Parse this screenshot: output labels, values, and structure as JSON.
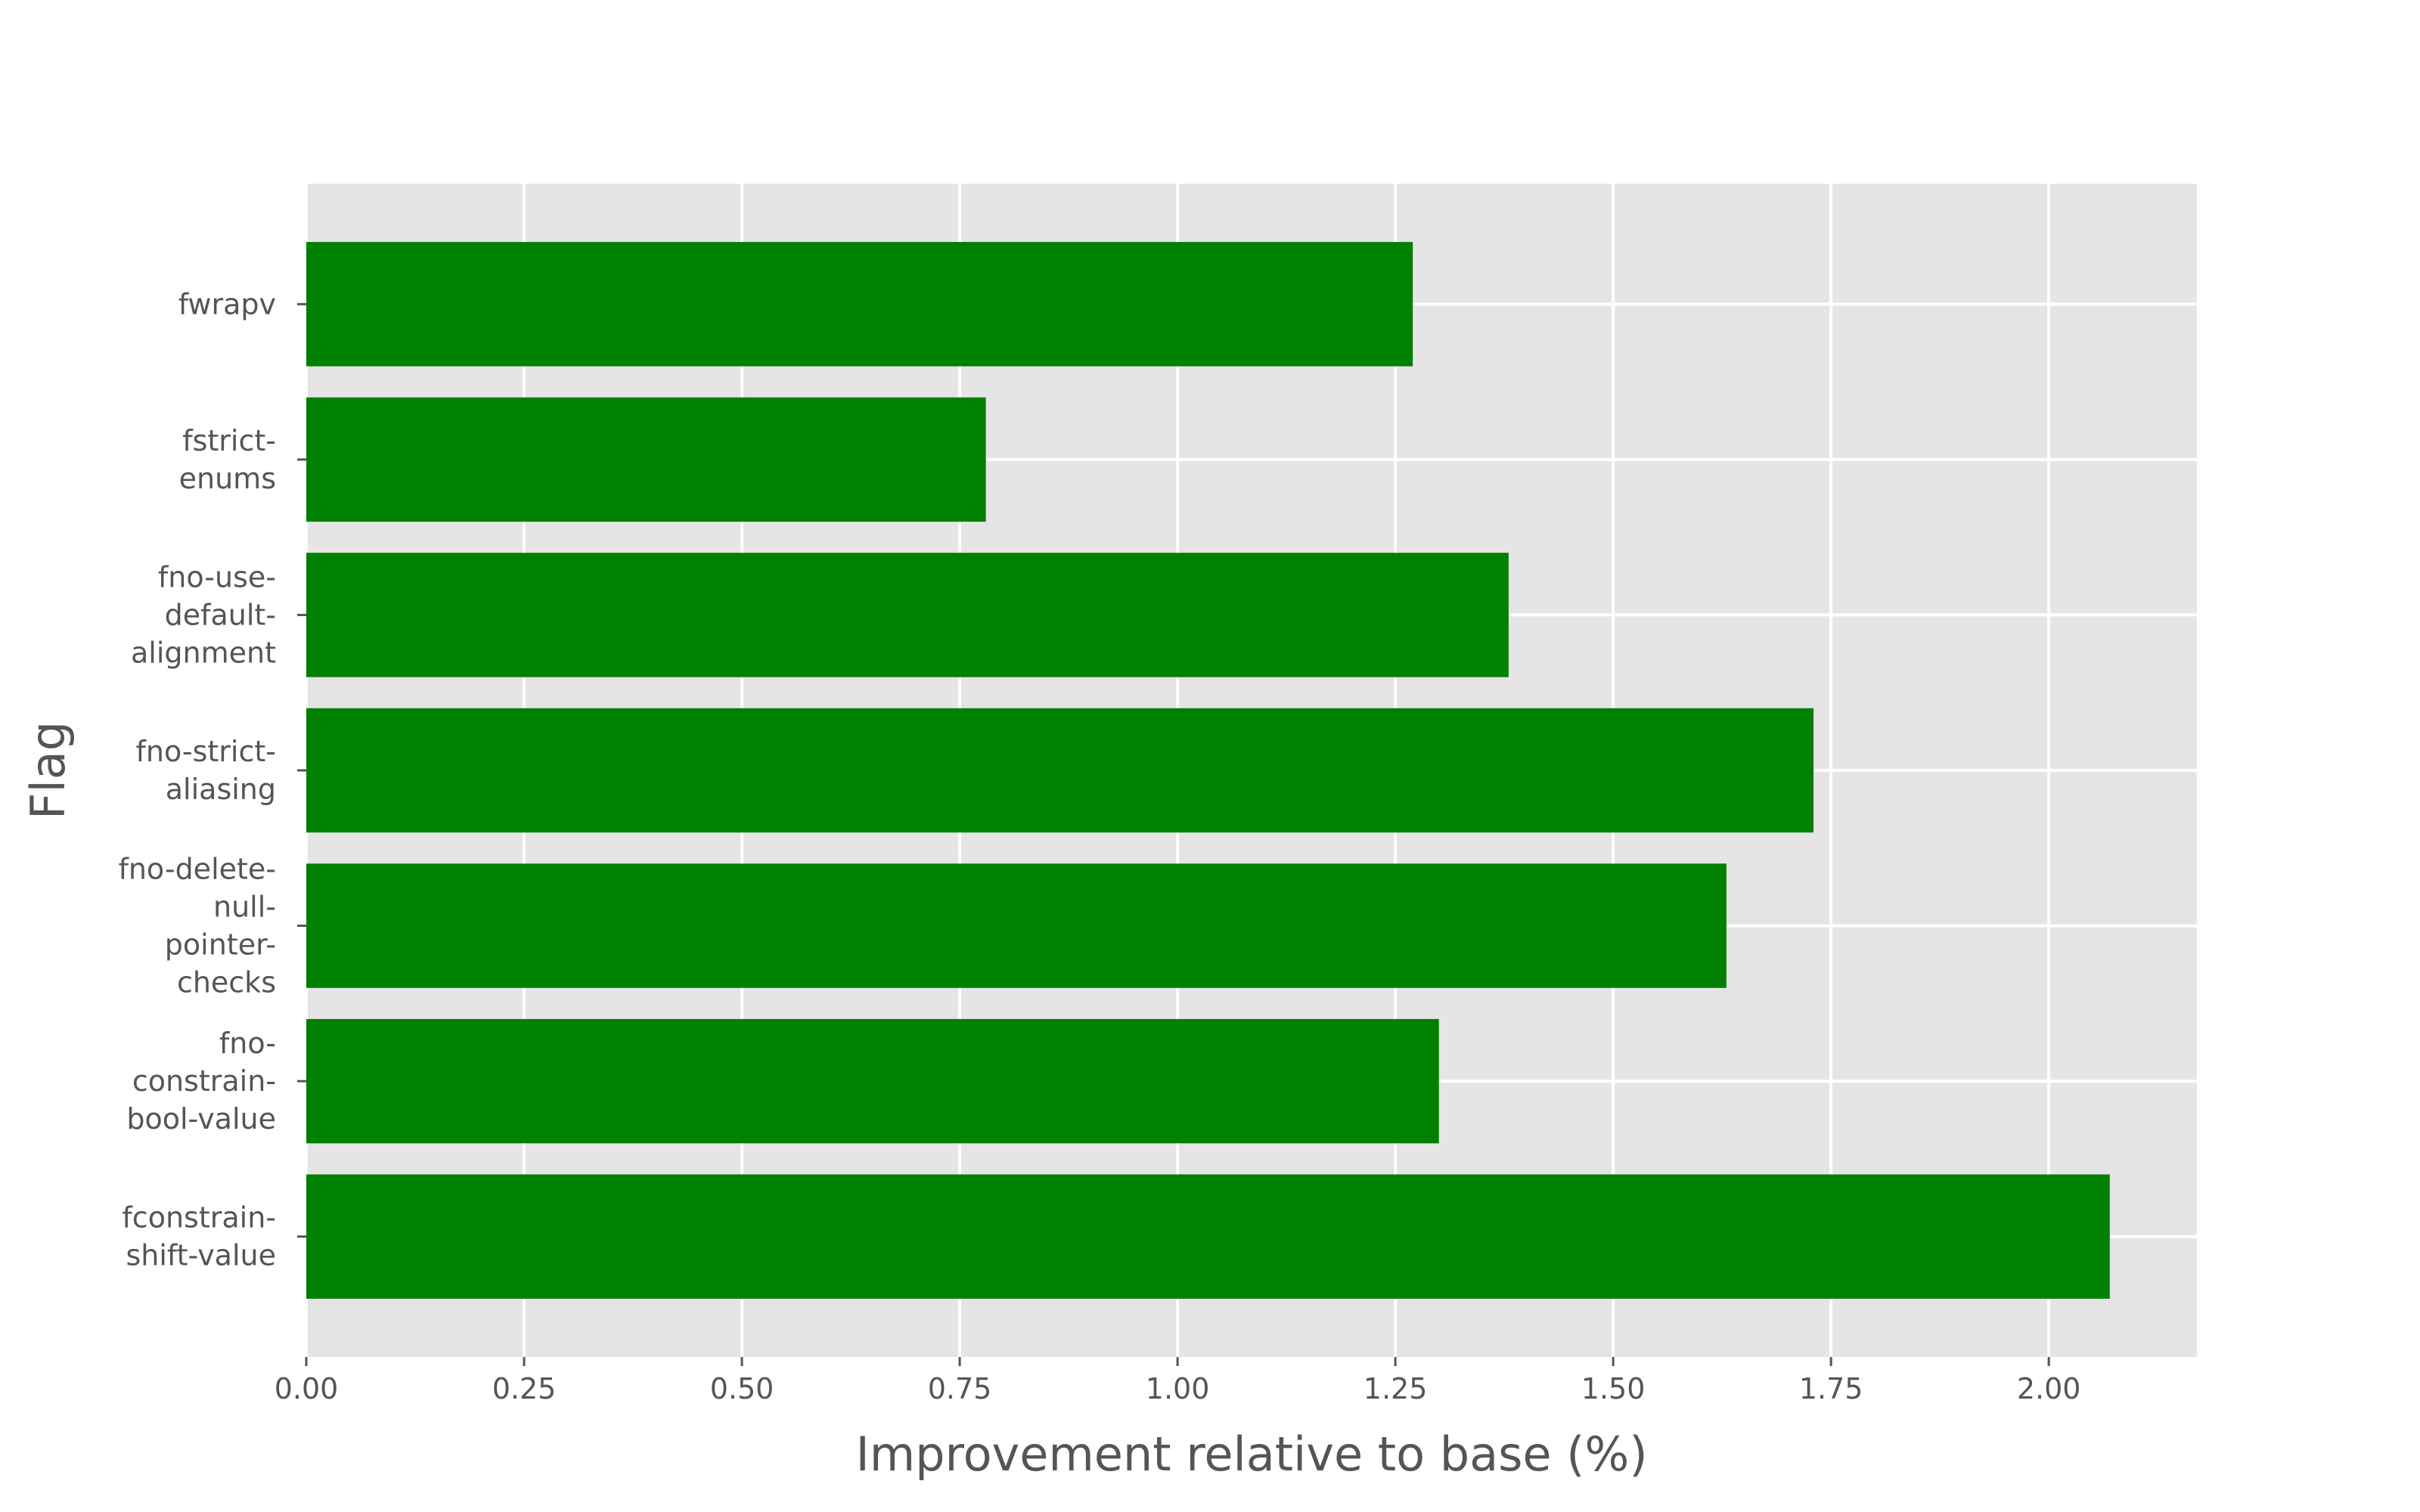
{
  "chart_data": {
    "type": "bar",
    "orientation": "horizontal",
    "categories": [
      [
        "fconstrain-",
        "shift-value"
      ],
      [
        "fno-",
        "constrain-",
        "bool-value"
      ],
      [
        "fno-delete-",
        "null-",
        "pointer-",
        "checks"
      ],
      [
        "fno-strict-",
        "aliasing"
      ],
      [
        "fno-use-",
        "default-",
        "alignment"
      ],
      [
        "fstrict-",
        "enums"
      ],
      [
        "fwrapv"
      ]
    ],
    "values": [
      2.07,
      1.3,
      1.63,
      1.73,
      1.38,
      0.78,
      1.27
    ],
    "xlabel": "Improvement relative to base (%)",
    "ylabel": "Flag",
    "xlim": [
      0,
      2.17
    ],
    "xticks": [
      "0.00",
      "0.25",
      "0.50",
      "0.75",
      "1.00",
      "1.25",
      "1.50",
      "1.75",
      "2.00"
    ],
    "bar_color": "#008000",
    "plot_background": "#e5e5e5",
    "grid": true
  }
}
